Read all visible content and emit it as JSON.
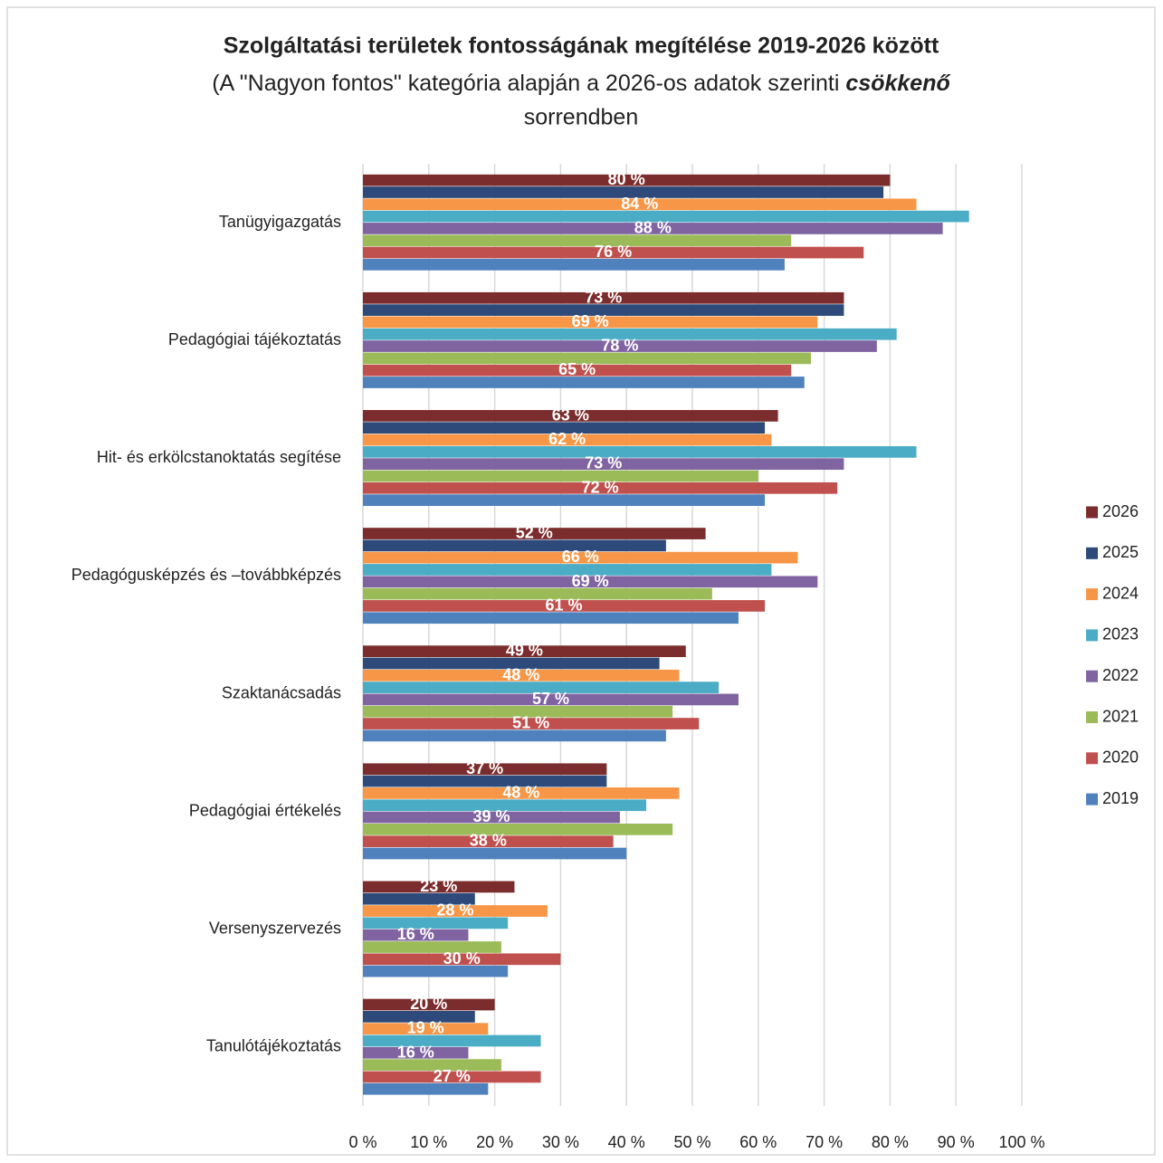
{
  "chart_data": {
    "type": "hbar",
    "title": "Szolgáltatási területek fontosságának megítélése 2019-2026 között",
    "subtitle": [
      "(A \"Nagyon fontos\" kategória alapján a 2026-os adatok szerinti",
      "csökkenő",
      "sorrendben"
    ],
    "categories": [
      "Tanügyigazgatás",
      "Pedagógiai tájékoztatás",
      "Hit- és erkölcstanoktatás segítése",
      "Pedagógusképzés és –továbbképzés",
      "Szaktanácsadás",
      "Pedagógiai értékelés",
      "Versenyszervezés",
      "Tanulótájékoztatás"
    ],
    "series": [
      {
        "name": "2026",
        "color": "#7b2c2c",
        "values": [
          80,
          73,
          63,
          52,
          49,
          37,
          23,
          20
        ],
        "value_labels": [
          "80 %",
          "73 %",
          "63 %",
          "52 %",
          "49 %",
          "37 %",
          "23 %",
          "20 %"
        ]
      },
      {
        "name": "2025",
        "color": "#2e4a7a",
        "values": [
          79,
          73,
          61,
          46,
          45,
          37,
          17,
          17
        ]
      },
      {
        "name": "2024",
        "color": "#f79646",
        "values": [
          84,
          69,
          62,
          66,
          48,
          48,
          28,
          19
        ],
        "value_labels": [
          "84 %",
          "69 %",
          "62 %",
          "66 %",
          "48 %",
          "48 %",
          "28 %",
          "19 %"
        ]
      },
      {
        "name": "2023",
        "color": "#4bacc6",
        "values": [
          92,
          81,
          84,
          62,
          54,
          43,
          22,
          27
        ]
      },
      {
        "name": "2022",
        "color": "#8064a2",
        "values": [
          88,
          78,
          73,
          69,
          57,
          39,
          16,
          16
        ],
        "value_labels": [
          "88 %",
          "78 %",
          "73 %",
          "69 %",
          "57 %",
          "39 %",
          "16 %",
          "16 %"
        ]
      },
      {
        "name": "2021",
        "color": "#9bbb59",
        "values": [
          65,
          68,
          60,
          53,
          47,
          47,
          21,
          21
        ]
      },
      {
        "name": "2020",
        "color": "#c0504d",
        "values": [
          76,
          65,
          72,
          61,
          51,
          38,
          30,
          27
        ],
        "value_labels": [
          "76 %",
          "65 %",
          "72 %",
          "61 %",
          "51 %",
          "38 %",
          "30 %",
          "27 %"
        ]
      },
      {
        "name": "2019",
        "color": "#4f81bd",
        "values": [
          64,
          67,
          61,
          57,
          46,
          40,
          22,
          19
        ]
      }
    ],
    "xlim": [
      0,
      100
    ],
    "xticks": [
      {
        "value": 0,
        "label": "0 %"
      },
      {
        "value": 10,
        "label": "10 %"
      },
      {
        "value": 20,
        "label": "20 %"
      },
      {
        "value": 30,
        "label": "30 %"
      },
      {
        "value": 40,
        "label": "40 %"
      },
      {
        "value": 50,
        "label": "50 %"
      },
      {
        "value": 60,
        "label": "60 %"
      },
      {
        "value": 70,
        "label": "70 %"
      },
      {
        "value": 80,
        "label": "80 %"
      },
      {
        "value": 90,
        "label": "90 %"
      },
      {
        "value": 100,
        "label": "100 %"
      }
    ],
    "grid": true,
    "legend": "right"
  }
}
